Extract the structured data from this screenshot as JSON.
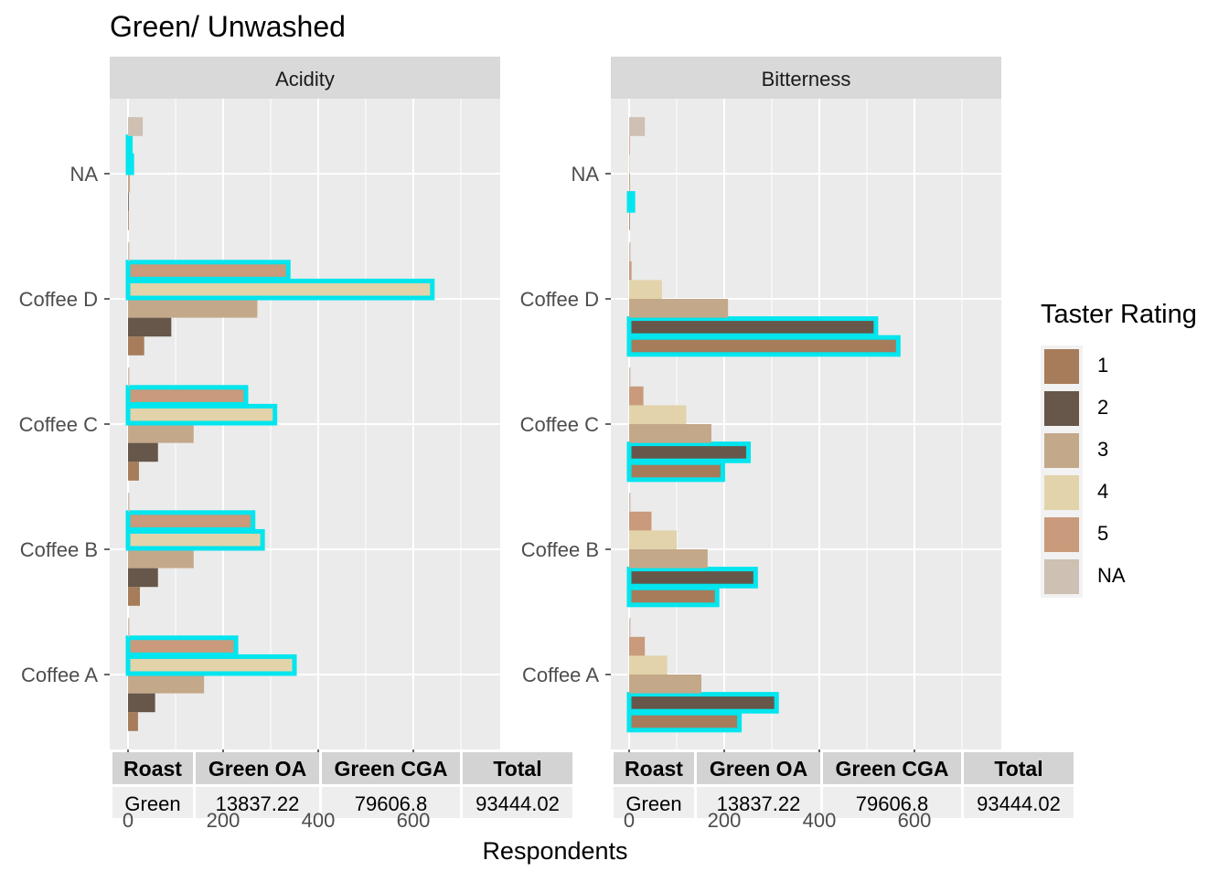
{
  "chart_data": {
    "type": "bar",
    "orientation": "horizontal",
    "title": "Green/ Unwashed",
    "xlabel": "Respondents",
    "categories": [
      "Coffee A",
      "Coffee B",
      "Coffee C",
      "Coffee D",
      "NA"
    ],
    "x_ticks": [
      "0",
      "200",
      "400",
      "600"
    ],
    "xlim": [
      0,
      780
    ],
    "grid": true,
    "legend": {
      "title": "Taster Rating",
      "position": "right",
      "levels": [
        "1",
        "2",
        "3",
        "4",
        "5",
        "NA"
      ],
      "colors": [
        "#a67c5b",
        "#66574a",
        "#c4a88a",
        "#e2d3ab",
        "#c99a7b",
        "#cec0b2"
      ]
    },
    "highlight_color": "#00e5ee",
    "panels": [
      {
        "strip": "Acidity",
        "series": [
          {
            "name": "1",
            "values": [
              21,
              25,
              23,
              34,
              0
            ]
          },
          {
            "name": "2",
            "values": [
              57,
              63,
              63,
              91,
              1
            ]
          },
          {
            "name": "3",
            "values": [
              160,
              138,
              138,
              272,
              4
            ]
          },
          {
            "name": "4",
            "values": [
              350,
              283,
              309,
              640,
              8
            ]
          },
          {
            "name": "5",
            "values": [
              227,
              263,
              248,
              337,
              5
            ]
          },
          {
            "name": "NA",
            "values": [
              3,
              3,
              3,
              3,
              31
            ]
          }
        ],
        "highlighted": [
          {
            "category": "Coffee A",
            "series": "4"
          },
          {
            "category": "Coffee A",
            "series": "5"
          },
          {
            "category": "Coffee B",
            "series": "4"
          },
          {
            "category": "Coffee B",
            "series": "5"
          },
          {
            "category": "Coffee C",
            "series": "4"
          },
          {
            "category": "Coffee C",
            "series": "5"
          },
          {
            "category": "Coffee D",
            "series": "4"
          },
          {
            "category": "Coffee D",
            "series": "5"
          },
          {
            "category": "NA",
            "series": "4"
          },
          {
            "category": "NA",
            "series": "5"
          }
        ],
        "table": {
          "headers": [
            "Roast",
            "Green OA",
            "Green CGA",
            "Total"
          ],
          "row": [
            "Green",
            "13837.22",
            "79606.8",
            "93444.02"
          ]
        }
      },
      {
        "strip": "Bitterness",
        "series": [
          {
            "name": "1",
            "values": [
              232,
              185,
              197,
              566,
              0
            ]
          },
          {
            "name": "2",
            "values": [
              310,
              266,
              251,
              519,
              8
            ]
          },
          {
            "name": "3",
            "values": [
              152,
              165,
              173,
              208,
              2
            ]
          },
          {
            "name": "4",
            "values": [
              80,
              100,
              120,
              69,
              0
            ]
          },
          {
            "name": "5",
            "values": [
              33,
              47,
              30,
              5,
              0
            ]
          },
          {
            "name": "NA",
            "values": [
              3,
              3,
              3,
              3,
              33
            ]
          }
        ],
        "highlighted": [
          {
            "category": "Coffee A",
            "series": "1"
          },
          {
            "category": "Coffee A",
            "series": "2"
          },
          {
            "category": "Coffee B",
            "series": "1"
          },
          {
            "category": "Coffee B",
            "series": "2"
          },
          {
            "category": "Coffee C",
            "series": "1"
          },
          {
            "category": "Coffee C",
            "series": "2"
          },
          {
            "category": "Coffee D",
            "series": "1"
          },
          {
            "category": "Coffee D",
            "series": "2"
          },
          {
            "category": "NA",
            "series": "2"
          }
        ],
        "table": {
          "headers": [
            "Roast",
            "Green OA",
            "Green CGA",
            "Total"
          ],
          "row": [
            "Green",
            "13837.22",
            "79606.8",
            "93444.02"
          ]
        }
      }
    ]
  }
}
